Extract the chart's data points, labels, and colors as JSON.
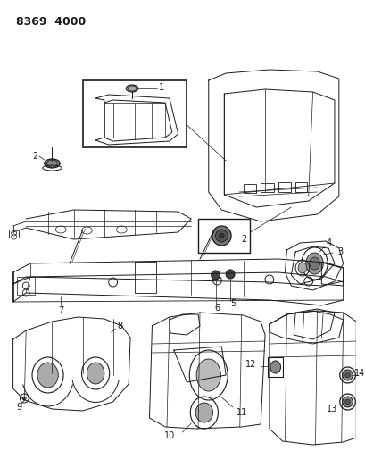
{
  "title": "8369 4000",
  "bg_color": "#ffffff",
  "lc": "#1a1a1a",
  "fig_width": 4.1,
  "fig_height": 5.33,
  "dpi": 100
}
